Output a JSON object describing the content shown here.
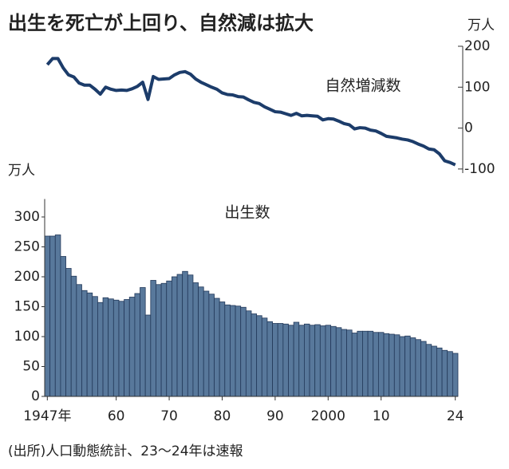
{
  "title": "出生を死亡が上回り、自然減は拡大",
  "source": "(出所)人口動態統計、23〜24年は速報",
  "chart_data": [
    {
      "type": "line",
      "unit": "万人",
      "y_axis_position": "right",
      "series": [
        {
          "name": "自然増減数",
          "color": "#1c3c6a",
          "x": [
            1947,
            1948,
            1949,
            1950,
            1951,
            1952,
            1953,
            1954,
            1955,
            1956,
            1957,
            1958,
            1959,
            1960,
            1961,
            1962,
            1963,
            1964,
            1965,
            1966,
            1967,
            1968,
            1969,
            1970,
            1971,
            1972,
            1973,
            1974,
            1975,
            1976,
            1977,
            1978,
            1979,
            1980,
            1981,
            1982,
            1983,
            1984,
            1985,
            1986,
            1987,
            1988,
            1989,
            1990,
            1991,
            1992,
            1993,
            1994,
            1995,
            1996,
            1997,
            1998,
            1999,
            2000,
            2001,
            2002,
            2003,
            2004,
            2005,
            2006,
            2007,
            2008,
            2009,
            2010,
            2011,
            2012,
            2013,
            2014,
            2015,
            2016,
            2017,
            2018,
            2019,
            2020,
            2021,
            2022,
            2023,
            2024
          ],
          "values": [
            155,
            170,
            170,
            147,
            130,
            125,
            110,
            105,
            105,
            95,
            83,
            100,
            95,
            92,
            93,
            92,
            96,
            102,
            112,
            70,
            126,
            119,
            120,
            121,
            130,
            136,
            138,
            132,
            120,
            112,
            106,
            100,
            95,
            86,
            82,
            81,
            77,
            76,
            69,
            63,
            60,
            52,
            46,
            40,
            39,
            35,
            31,
            36,
            30,
            31,
            30,
            29,
            20,
            23,
            22,
            17,
            11,
            8,
            -2,
            1,
            0,
            -5,
            -7,
            -13,
            -20,
            -22,
            -24,
            -27,
            -29,
            -33,
            -39,
            -44,
            -51,
            -53,
            -63,
            -80,
            -84,
            -90
          ]
        }
      ],
      "xlim": [
        1946.5,
        2024.5
      ],
      "ylim": [
        -110,
        200
      ],
      "yticks": [
        -100,
        0,
        100,
        200
      ]
    },
    {
      "type": "bar",
      "unit": "万人",
      "series": [
        {
          "name": "出生数",
          "color": "#58789b",
          "x": [
            1947,
            1948,
            1949,
            1950,
            1951,
            1952,
            1953,
            1954,
            1955,
            1956,
            1957,
            1958,
            1959,
            1960,
            1961,
            1962,
            1963,
            1964,
            1965,
            1966,
            1967,
            1968,
            1969,
            1970,
            1971,
            1972,
            1973,
            1974,
            1975,
            1976,
            1977,
            1978,
            1979,
            1980,
            1981,
            1982,
            1983,
            1984,
            1985,
            1986,
            1987,
            1988,
            1989,
            1990,
            1991,
            1992,
            1993,
            1994,
            1995,
            1996,
            1997,
            1998,
            1999,
            2000,
            2001,
            2002,
            2003,
            2004,
            2005,
            2006,
            2007,
            2008,
            2009,
            2010,
            2011,
            2012,
            2013,
            2014,
            2015,
            2016,
            2017,
            2018,
            2019,
            2020,
            2021,
            2022,
            2023,
            2024
          ],
          "values": [
            268,
            268,
            270,
            234,
            214,
            201,
            187,
            177,
            173,
            167,
            157,
            165,
            163,
            161,
            159,
            162,
            166,
            172,
            182,
            136,
            194,
            187,
            189,
            193,
            200,
            204,
            209,
            203,
            190,
            183,
            176,
            171,
            164,
            158,
            153,
            152,
            151,
            149,
            143,
            138,
            135,
            131,
            125,
            122,
            122,
            121,
            119,
            124,
            119,
            121,
            119,
            120,
            118,
            119,
            117,
            115,
            112,
            111,
            106,
            109,
            109,
            109,
            107,
            107,
            105,
            104,
            103,
            100,
            101,
            98,
            95,
            92,
            87,
            84,
            81,
            77,
            75,
            72
          ]
        }
      ],
      "xlim": [
        1946.5,
        2024.5
      ],
      "xticks": [
        {
          "value": 1947,
          "label": "1947年"
        },
        {
          "value": 1960,
          "label": "60"
        },
        {
          "value": 1970,
          "label": "70"
        },
        {
          "value": 1980,
          "label": "80"
        },
        {
          "value": 1990,
          "label": "90"
        },
        {
          "value": 2000,
          "label": "2000"
        },
        {
          "value": 2010,
          "label": "10"
        },
        {
          "value": 2024,
          "label": "24"
        }
      ],
      "ylim": [
        0,
        330
      ],
      "yticks": [
        0,
        50,
        100,
        150,
        200,
        250,
        300
      ]
    }
  ]
}
